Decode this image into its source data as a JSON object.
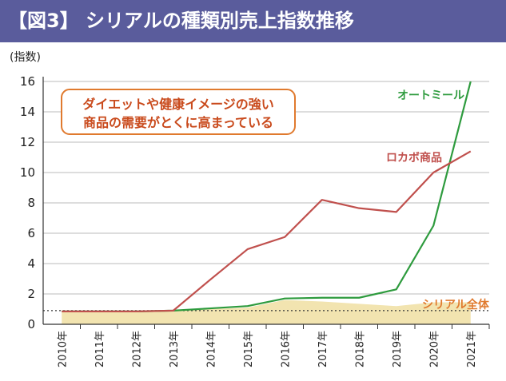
{
  "chart_data": {
    "type": "line",
    "title": "【図3】 シリアルの種類別売上指数推移",
    "ylabel": "(指数)",
    "xlabel": "",
    "ylim": [
      0,
      16
    ],
    "yticks": [
      "0",
      "2",
      "4",
      "6",
      "8",
      "10",
      "12",
      "14",
      "16"
    ],
    "categories": [
      "2010年",
      "2011年",
      "2012年",
      "2013年",
      "2014年",
      "2015年",
      "2016年",
      "2017年",
      "2018年",
      "2019年",
      "2020年",
      "2021年"
    ],
    "series": [
      {
        "name": "オートミール",
        "style": "line",
        "color": "#2e9b3e",
        "values": [
          0.85,
          0.85,
          0.85,
          0.9,
          1.05,
          1.2,
          1.7,
          1.75,
          1.75,
          2.3,
          6.5,
          16.0
        ]
      },
      {
        "name": "ロカボ商品",
        "style": "line",
        "color": "#c0504d",
        "values": [
          0.85,
          0.85,
          0.85,
          0.9,
          2.95,
          4.95,
          5.75,
          8.2,
          7.65,
          7.4,
          10.0,
          11.4
        ]
      },
      {
        "name": "シリアル全体",
        "style": "area",
        "color": "#f2e4b0",
        "values": [
          0.85,
          0.85,
          0.85,
          0.88,
          1.0,
          1.1,
          1.6,
          1.5,
          1.35,
          1.2,
          1.45,
          1.45
        ]
      }
    ],
    "reference_line": {
      "value": 0.9,
      "style": "dotted"
    },
    "annotation": {
      "line1": "ダイエットや健康イメージの強い",
      "line2": "商品の需要がとくに高まっている"
    }
  }
}
